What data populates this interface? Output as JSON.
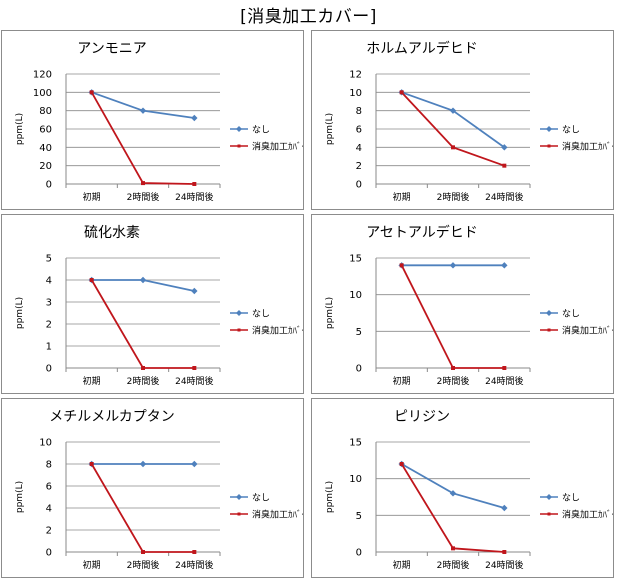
{
  "page": {
    "title": "[消臭加工カバー]"
  },
  "chart_data": [
    {
      "type": "line",
      "title": "アンモニア",
      "xlabel": "",
      "ylabel": "ppm(L)",
      "categories": [
        "初期",
        "2時間後",
        "24時間後"
      ],
      "ylim": [
        0,
        120
      ],
      "yticks": [
        0,
        20,
        40,
        60,
        80,
        100,
        120
      ],
      "grid": true,
      "legend": "right",
      "series": [
        {
          "name": "なし",
          "color": "#4f81bd",
          "values": [
            100,
            80,
            72
          ]
        },
        {
          "name": "消臭加工ｶﾊﾞｰ",
          "color": "#c0161c",
          "values": [
            100,
            1,
            0
          ]
        }
      ]
    },
    {
      "type": "line",
      "title": "ホルムアルデヒド",
      "xlabel": "",
      "ylabel": "ppm(L)",
      "categories": [
        "初期",
        "2時間後",
        "24時間後"
      ],
      "ylim": [
        0,
        12
      ],
      "yticks": [
        0,
        2,
        4,
        6,
        8,
        10,
        12
      ],
      "grid": true,
      "legend": "right",
      "series": [
        {
          "name": "なし",
          "color": "#4f81bd",
          "values": [
            10,
            8,
            4
          ]
        },
        {
          "name": "消臭加工ｶﾊﾞｰ",
          "color": "#c0161c",
          "values": [
            10,
            4,
            2
          ]
        }
      ]
    },
    {
      "type": "line",
      "title": "硫化水素",
      "xlabel": "",
      "ylabel": "ppm(L)",
      "categories": [
        "初期",
        "2時間後",
        "24時間後"
      ],
      "ylim": [
        0,
        5
      ],
      "yticks": [
        0,
        1,
        2,
        3,
        4,
        5
      ],
      "grid": true,
      "legend": "right",
      "series": [
        {
          "name": "なし",
          "color": "#4f81bd",
          "values": [
            4,
            4,
            3.5
          ]
        },
        {
          "name": "消臭加工ｶﾊﾞｰ",
          "color": "#c0161c",
          "values": [
            4,
            0,
            0
          ]
        }
      ]
    },
    {
      "type": "line",
      "title": "アセトアルデヒド",
      "xlabel": "",
      "ylabel": "ppm(L)",
      "categories": [
        "初期",
        "2時間後",
        "24時間後"
      ],
      "ylim": [
        0,
        15
      ],
      "yticks": [
        0,
        5,
        10,
        15
      ],
      "grid": true,
      "legend": "right",
      "series": [
        {
          "name": "なし",
          "color": "#4f81bd",
          "values": [
            14,
            14,
            14
          ]
        },
        {
          "name": "消臭加工ｶﾊﾞｰ",
          "color": "#c0161c",
          "values": [
            14,
            0,
            0
          ]
        }
      ]
    },
    {
      "type": "line",
      "title": "メチルメルカプタン",
      "xlabel": "",
      "ylabel": "ppm(L)",
      "categories": [
        "初期",
        "2時間後",
        "24時間後"
      ],
      "ylim": [
        0,
        10
      ],
      "yticks": [
        0,
        2,
        4,
        6,
        8,
        10
      ],
      "grid": true,
      "legend": "right",
      "series": [
        {
          "name": "なし",
          "color": "#4f81bd",
          "values": [
            8,
            8,
            8
          ]
        },
        {
          "name": "消臭加工ｶﾊﾞｰ",
          "color": "#c0161c",
          "values": [
            8,
            0,
            0
          ]
        }
      ]
    },
    {
      "type": "line",
      "title": "ピリジン",
      "xlabel": "",
      "ylabel": "ppm(L)",
      "categories": [
        "初期",
        "2時間後",
        "24時間後"
      ],
      "ylim": [
        0,
        15
      ],
      "yticks": [
        0,
        5,
        10,
        15
      ],
      "grid": true,
      "legend": "right",
      "series": [
        {
          "name": "なし",
          "color": "#4f81bd",
          "values": [
            12,
            8,
            6
          ]
        },
        {
          "name": "消臭加工ｶﾊﾞｰ",
          "color": "#c0161c",
          "values": [
            12,
            0.5,
            0
          ]
        }
      ]
    }
  ]
}
